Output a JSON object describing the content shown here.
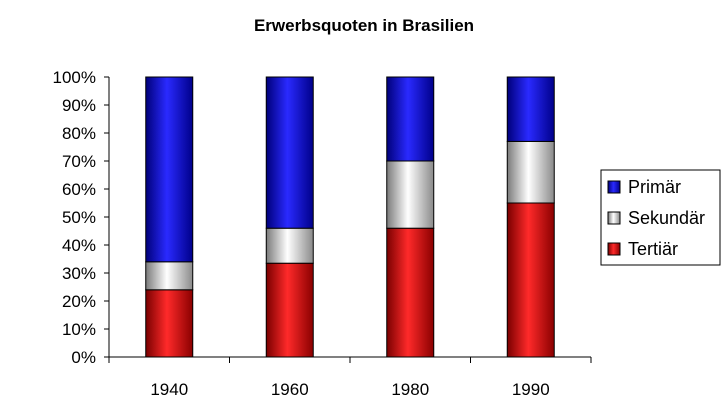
{
  "chart_data": {
    "type": "bar",
    "stacked": true,
    "percent": true,
    "title": "Erwerbsquoten in Brasilien",
    "xlabel": "",
    "ylabel": "",
    "categories": [
      "1940",
      "1960",
      "1980",
      "1990"
    ],
    "ylim": [
      0,
      100
    ],
    "y_ticks": [
      "0%",
      "10%",
      "20%",
      "30%",
      "40%",
      "50%",
      "60%",
      "70%",
      "80%",
      "90%",
      "100%"
    ],
    "series": [
      {
        "name": "Tertiär",
        "values": [
          24,
          33.5,
          46,
          55
        ],
        "color": "#ff0000"
      },
      {
        "name": "Sekundär",
        "values": [
          10,
          12.5,
          24,
          22
        ],
        "color": "#c0c0c0"
      },
      {
        "name": "Primär",
        "values": [
          66,
          54,
          30,
          23
        ],
        "color": "#0000ff"
      }
    ],
    "legend_order": [
      "Primär",
      "Sekundär",
      "Tertiär"
    ],
    "legend_position": "right",
    "grid": false
  }
}
